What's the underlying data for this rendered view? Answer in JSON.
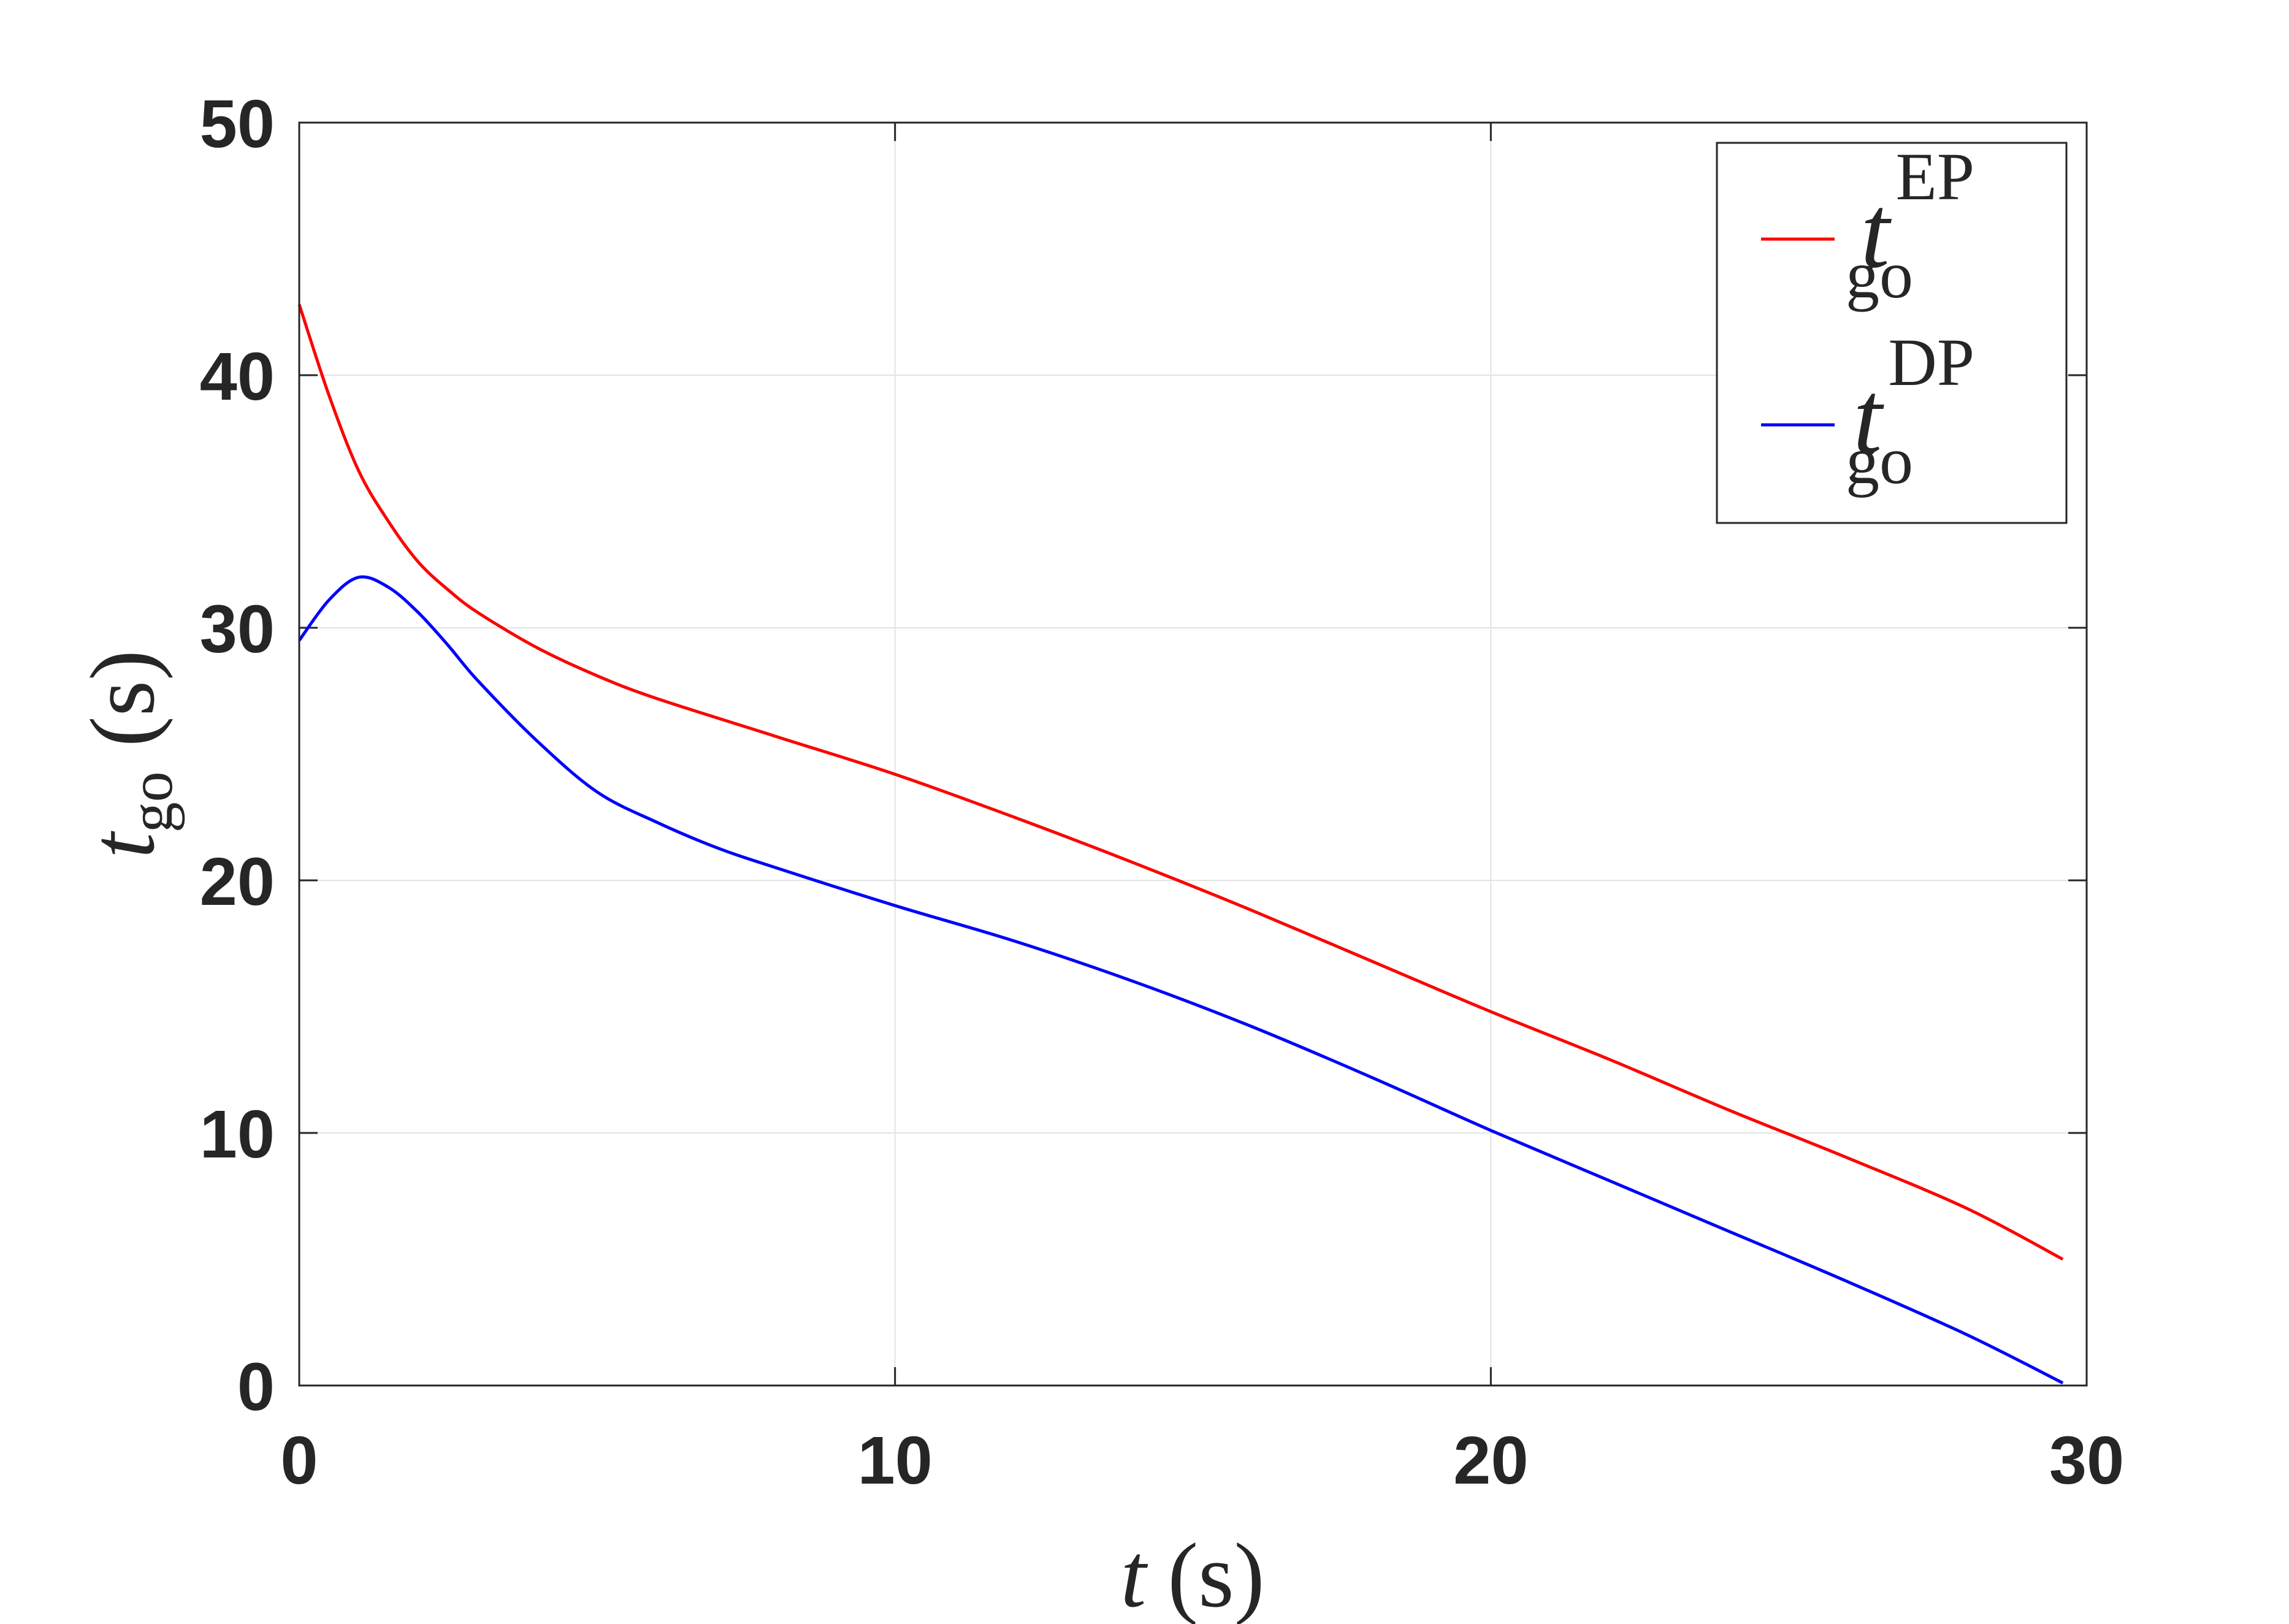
{
  "chart_data": {
    "type": "line",
    "title": "",
    "xlabel": {
      "var": "t",
      "unit": "(s)"
    },
    "ylabel": {
      "var": "t",
      "sub": "go",
      "unit": "(s)"
    },
    "xlim": [
      0,
      30
    ],
    "ylim": [
      0,
      50
    ],
    "xticks": [
      0,
      10,
      20,
      30
    ],
    "yticks": [
      0,
      10,
      20,
      30,
      40,
      50
    ],
    "xtick_labels": [
      "0",
      "10",
      "20",
      "30"
    ],
    "ytick_labels": [
      "0",
      "10",
      "20",
      "30",
      "40",
      "50"
    ],
    "grid": true,
    "legend_position": "top-right",
    "series": [
      {
        "name": "t_go^EP",
        "legend": {
          "var": "t",
          "sup": "EP",
          "sub": "go"
        },
        "color": "#ff0000",
        "x": [
          0,
          0.5,
          1,
          1.5,
          2,
          2.5,
          3,
          4,
          5,
          6,
          8,
          10,
          12,
          14,
          16,
          18,
          20,
          22,
          24,
          26,
          28,
          29.6
        ],
        "y": [
          42.8,
          39.2,
          36.2,
          34.2,
          32.6,
          31.5,
          30.6,
          29.2,
          28.1,
          27.2,
          25.7,
          24.2,
          22.5,
          20.7,
          18.8,
          16.8,
          14.8,
          12.9,
          10.9,
          9.0,
          7.0,
          5.0
        ]
      },
      {
        "name": "t_go^DP",
        "legend": {
          "var": "t",
          "sup": "DP",
          "sub": "go"
        },
        "color": "#0000ff",
        "x": [
          0,
          0.5,
          1,
          1.5,
          2,
          2.5,
          3,
          4,
          5,
          6,
          7,
          8,
          10,
          12,
          14,
          16,
          18,
          20,
          22,
          24,
          26,
          28,
          29.6
        ],
        "y": [
          29.5,
          31.1,
          32.0,
          31.6,
          30.6,
          29.3,
          27.9,
          25.5,
          23.5,
          22.3,
          21.3,
          20.5,
          19.0,
          17.6,
          16.0,
          14.2,
          12.2,
          10.1,
          8.1,
          6.1,
          4.1,
          2.0,
          0.1
        ]
      }
    ]
  }
}
